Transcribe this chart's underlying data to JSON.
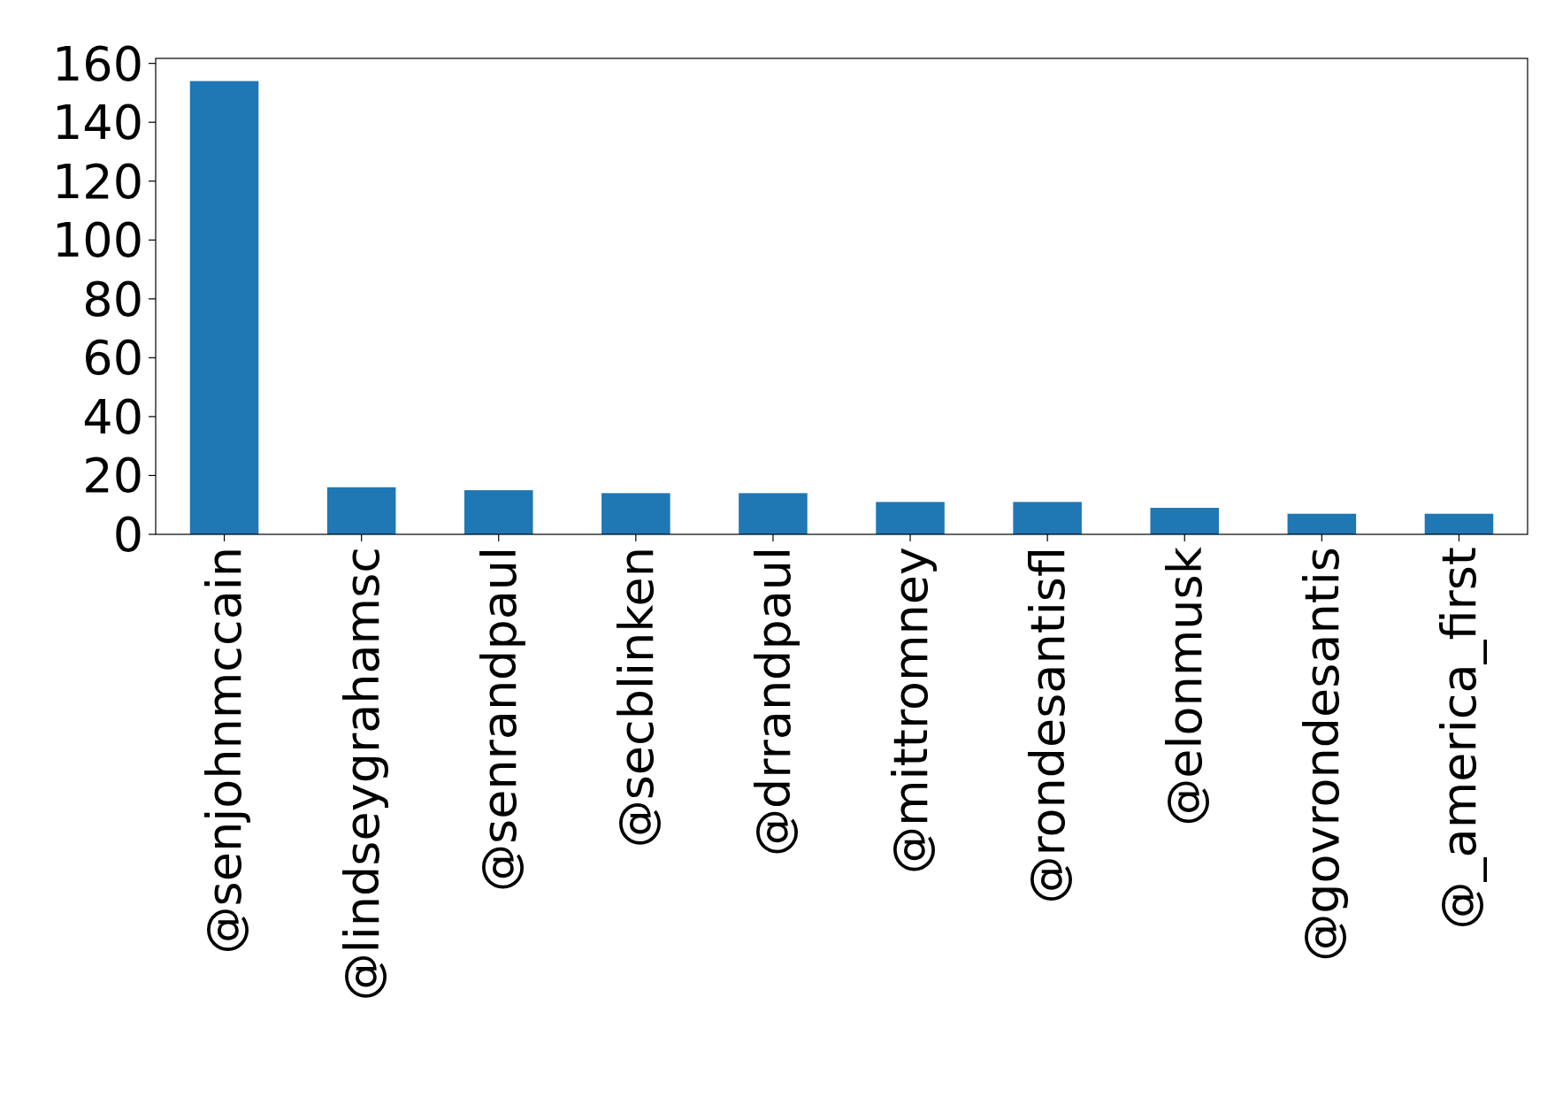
{
  "chart_data": {
    "type": "bar",
    "categories": [
      "@senjohnmccain",
      "@lindseygrahamsc",
      "@senrandpaul",
      "@secblinken",
      "@drrandpaul",
      "@mittromney",
      "@rondesantisfl",
      "@elonmusk",
      "@govrondesantis",
      "@_america_first"
    ],
    "values": [
      154,
      16,
      15,
      14,
      14,
      11,
      11,
      9,
      7,
      7
    ],
    "color": "#1f77b4",
    "ylim": [
      0,
      161.7
    ],
    "yticks": [
      0,
      20,
      40,
      60,
      80,
      100,
      120,
      140,
      160
    ],
    "grid": false
  }
}
